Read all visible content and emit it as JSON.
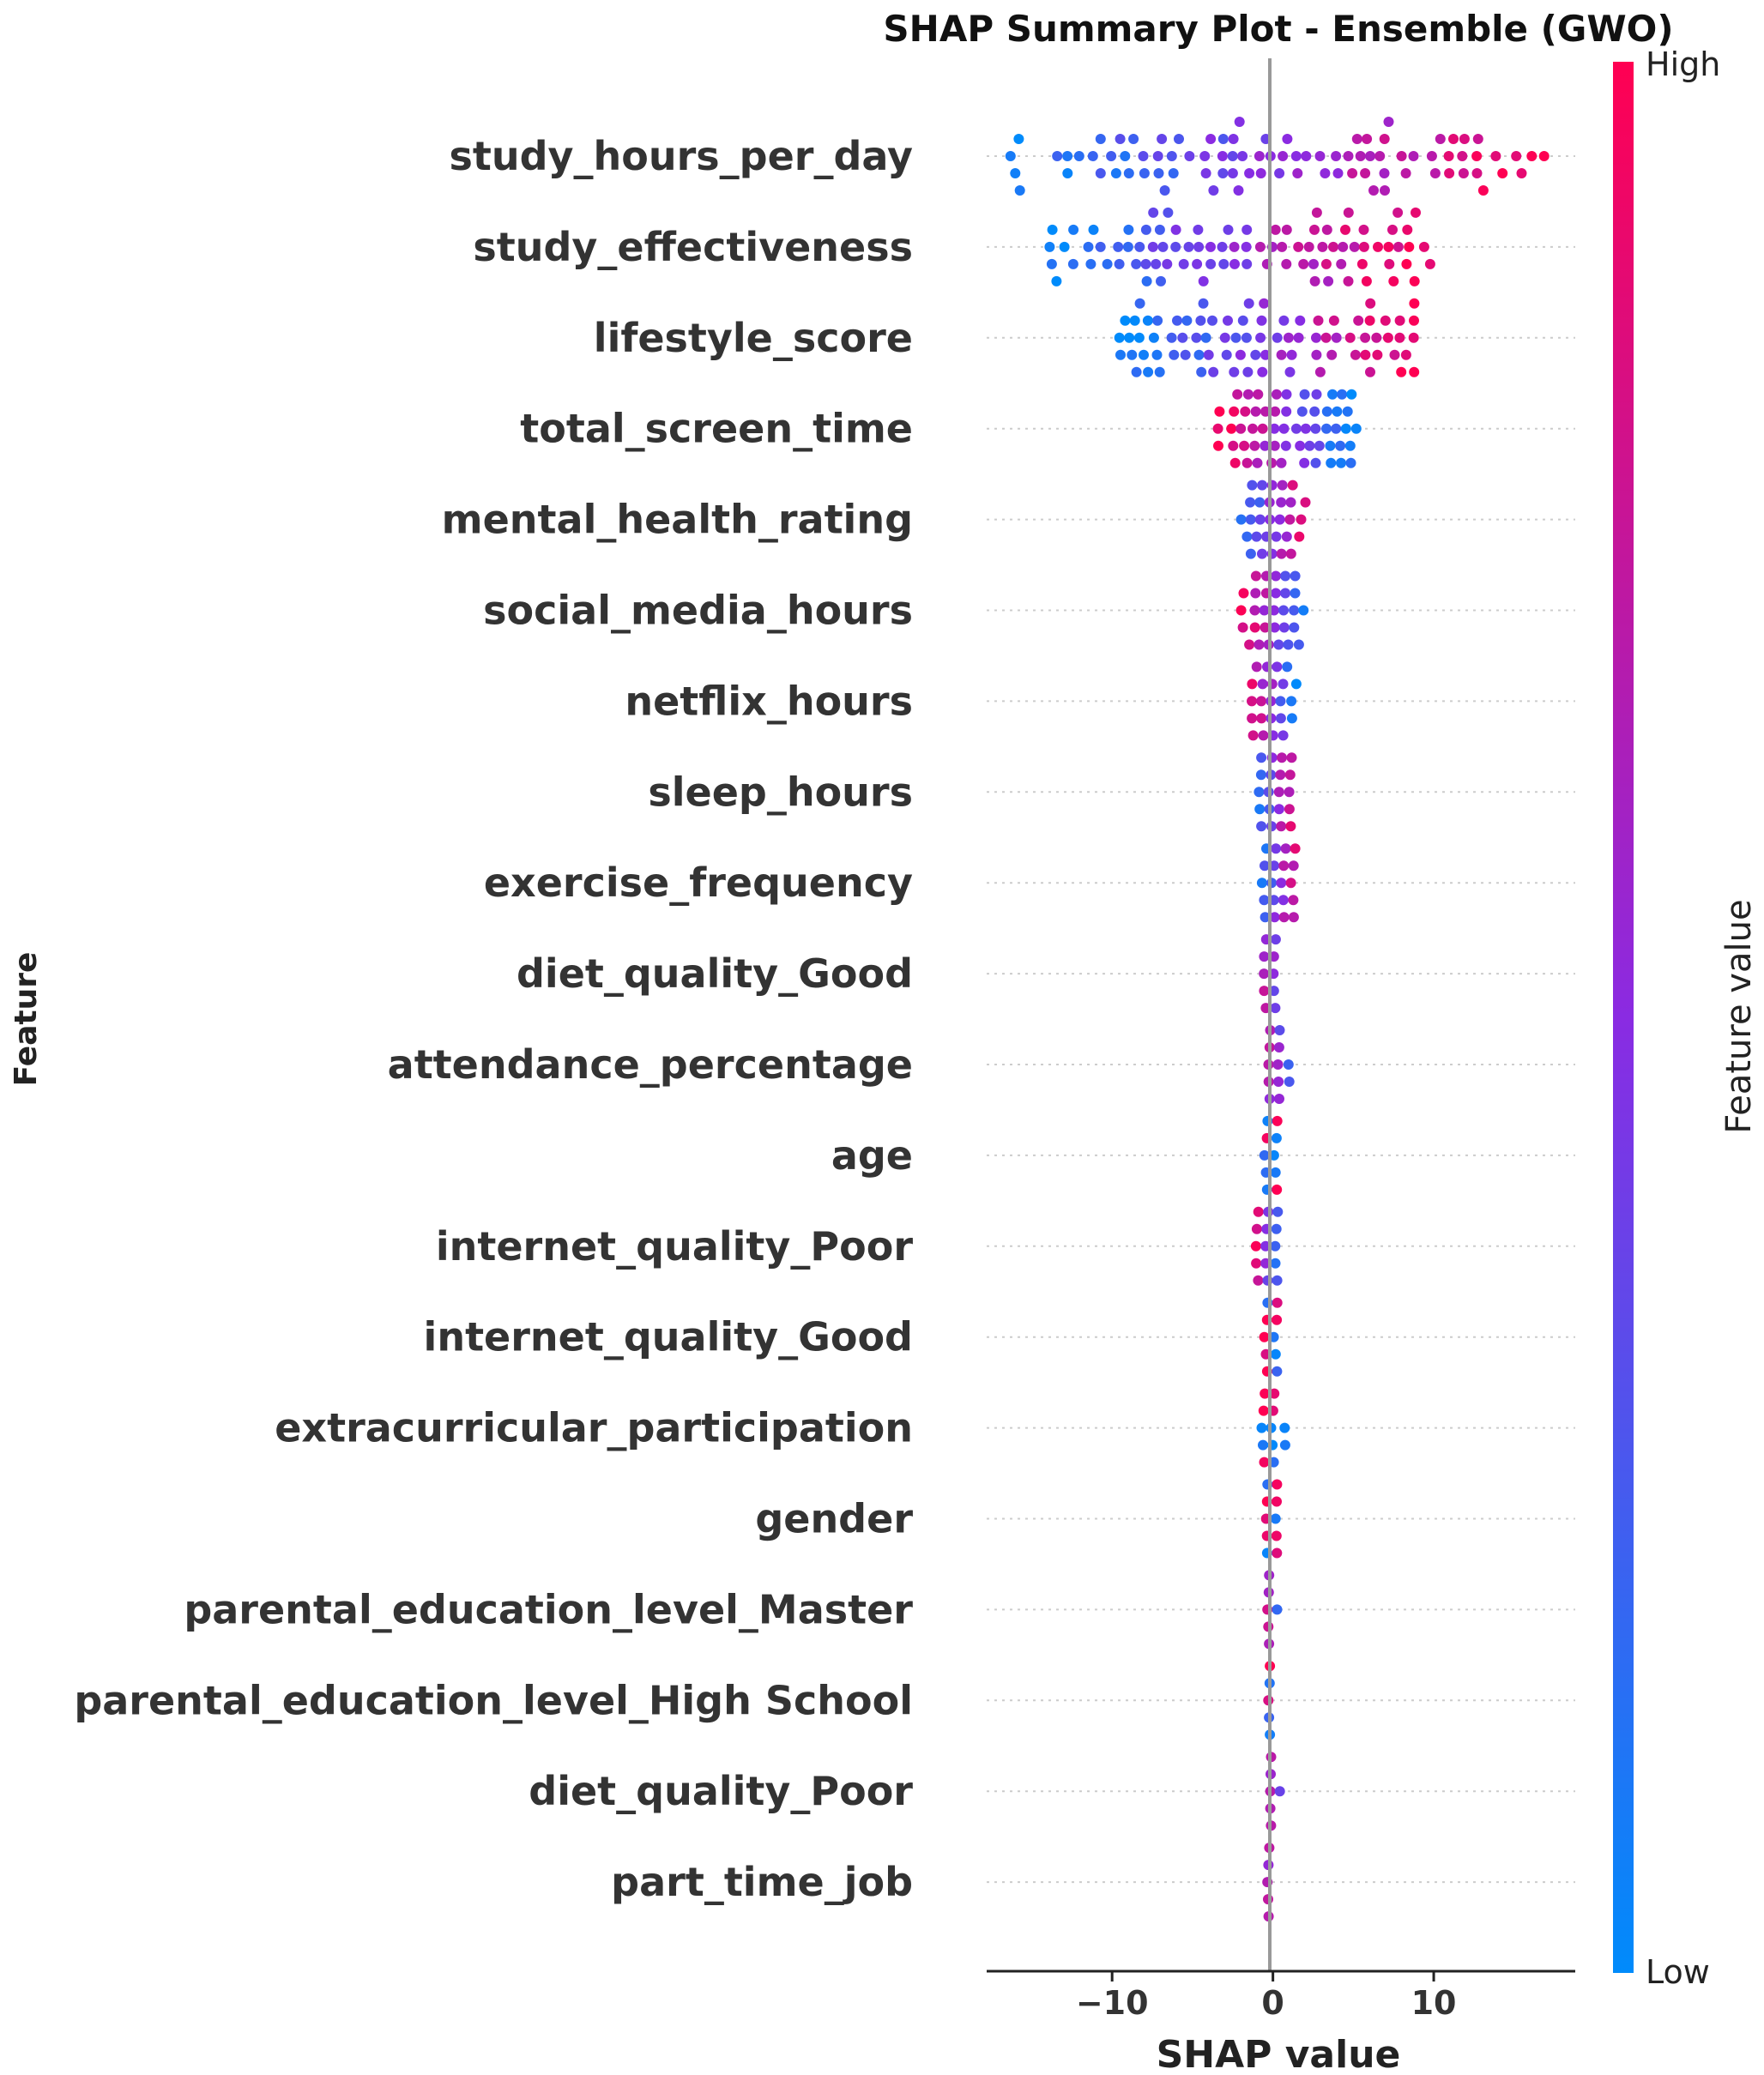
{
  "chart_data": {
    "type": "scatter",
    "subtype": "shap_beeswarm",
    "title": "SHAP Summary Plot - Ensemble (GWO)",
    "xlabel": "SHAP value",
    "ylabel": "Feature",
    "xlim": [
      -17.8,
      18.8
    ],
    "xticks": [
      {
        "value": -10,
        "label": "−10"
      },
      {
        "value": 0,
        "label": "0"
      },
      {
        "value": 10,
        "label": "10"
      }
    ],
    "colorbar": {
      "label": "Feature value",
      "high_label": "High",
      "low_label": "Low",
      "low_color": "#008bfb",
      "mid_color": "#8a2be2",
      "high_color": "#ff0052"
    },
    "features": [
      {
        "name": "study_hours_per_day",
        "min": -16.5,
        "max": 17,
        "corr": 1.0
      },
      {
        "name": "study_effectiveness",
        "min": -14.5,
        "max": 10,
        "corr": 1.0
      },
      {
        "name": "lifestyle_score",
        "min": -9.8,
        "max": 9.5,
        "corr": 1.0
      },
      {
        "name": "total_screen_time",
        "min": -3.5,
        "max": 5.2,
        "corr": -1.0
      },
      {
        "name": "mental_health_rating",
        "min": -2.5,
        "max": 2.5,
        "corr": 1.0
      },
      {
        "name": "social_media_hours",
        "min": -2.2,
        "max": 2.7,
        "corr": -1.0
      },
      {
        "name": "netflix_hours",
        "min": -1.8,
        "max": 1.8,
        "corr": -1.0
      },
      {
        "name": "sleep_hours",
        "min": -1.3,
        "max": 1.7,
        "corr": 1.0
      },
      {
        "name": "exercise_frequency",
        "min": -1.1,
        "max": 1.9,
        "corr": 1.0
      },
      {
        "name": "diet_quality_Good",
        "min": -0.8,
        "max": 0.8,
        "corr": -0.4
      },
      {
        "name": "attendance_percentage",
        "min": -0.7,
        "max": 1.2,
        "corr": -0.6
      },
      {
        "name": "age",
        "min": -0.8,
        "max": 0.8,
        "corr": 0.0
      },
      {
        "name": "internet_quality_Poor",
        "min": -1.3,
        "max": 0.6,
        "corr": -1.0
      },
      {
        "name": "internet_quality_Good",
        "min": -0.6,
        "max": 0.6,
        "corr": 0.0
      },
      {
        "name": "extracurricular_participation",
        "min": -0.9,
        "max": 0.9,
        "corr": 0.0
      },
      {
        "name": "gender",
        "min": -0.5,
        "max": 0.5,
        "corr": 0.0
      },
      {
        "name": "parental_education_level_Master",
        "min": -0.4,
        "max": 0.3,
        "corr": -0.5
      },
      {
        "name": "parental_education_level_High School",
        "min": -0.4,
        "max": 0.4,
        "corr": 0.0
      },
      {
        "name": "diet_quality_Poor",
        "min": -0.3,
        "max": 0.5,
        "corr": -0.5
      },
      {
        "name": "part_time_job",
        "min": -0.4,
        "max": 0.3,
        "corr": -0.5
      }
    ]
  }
}
